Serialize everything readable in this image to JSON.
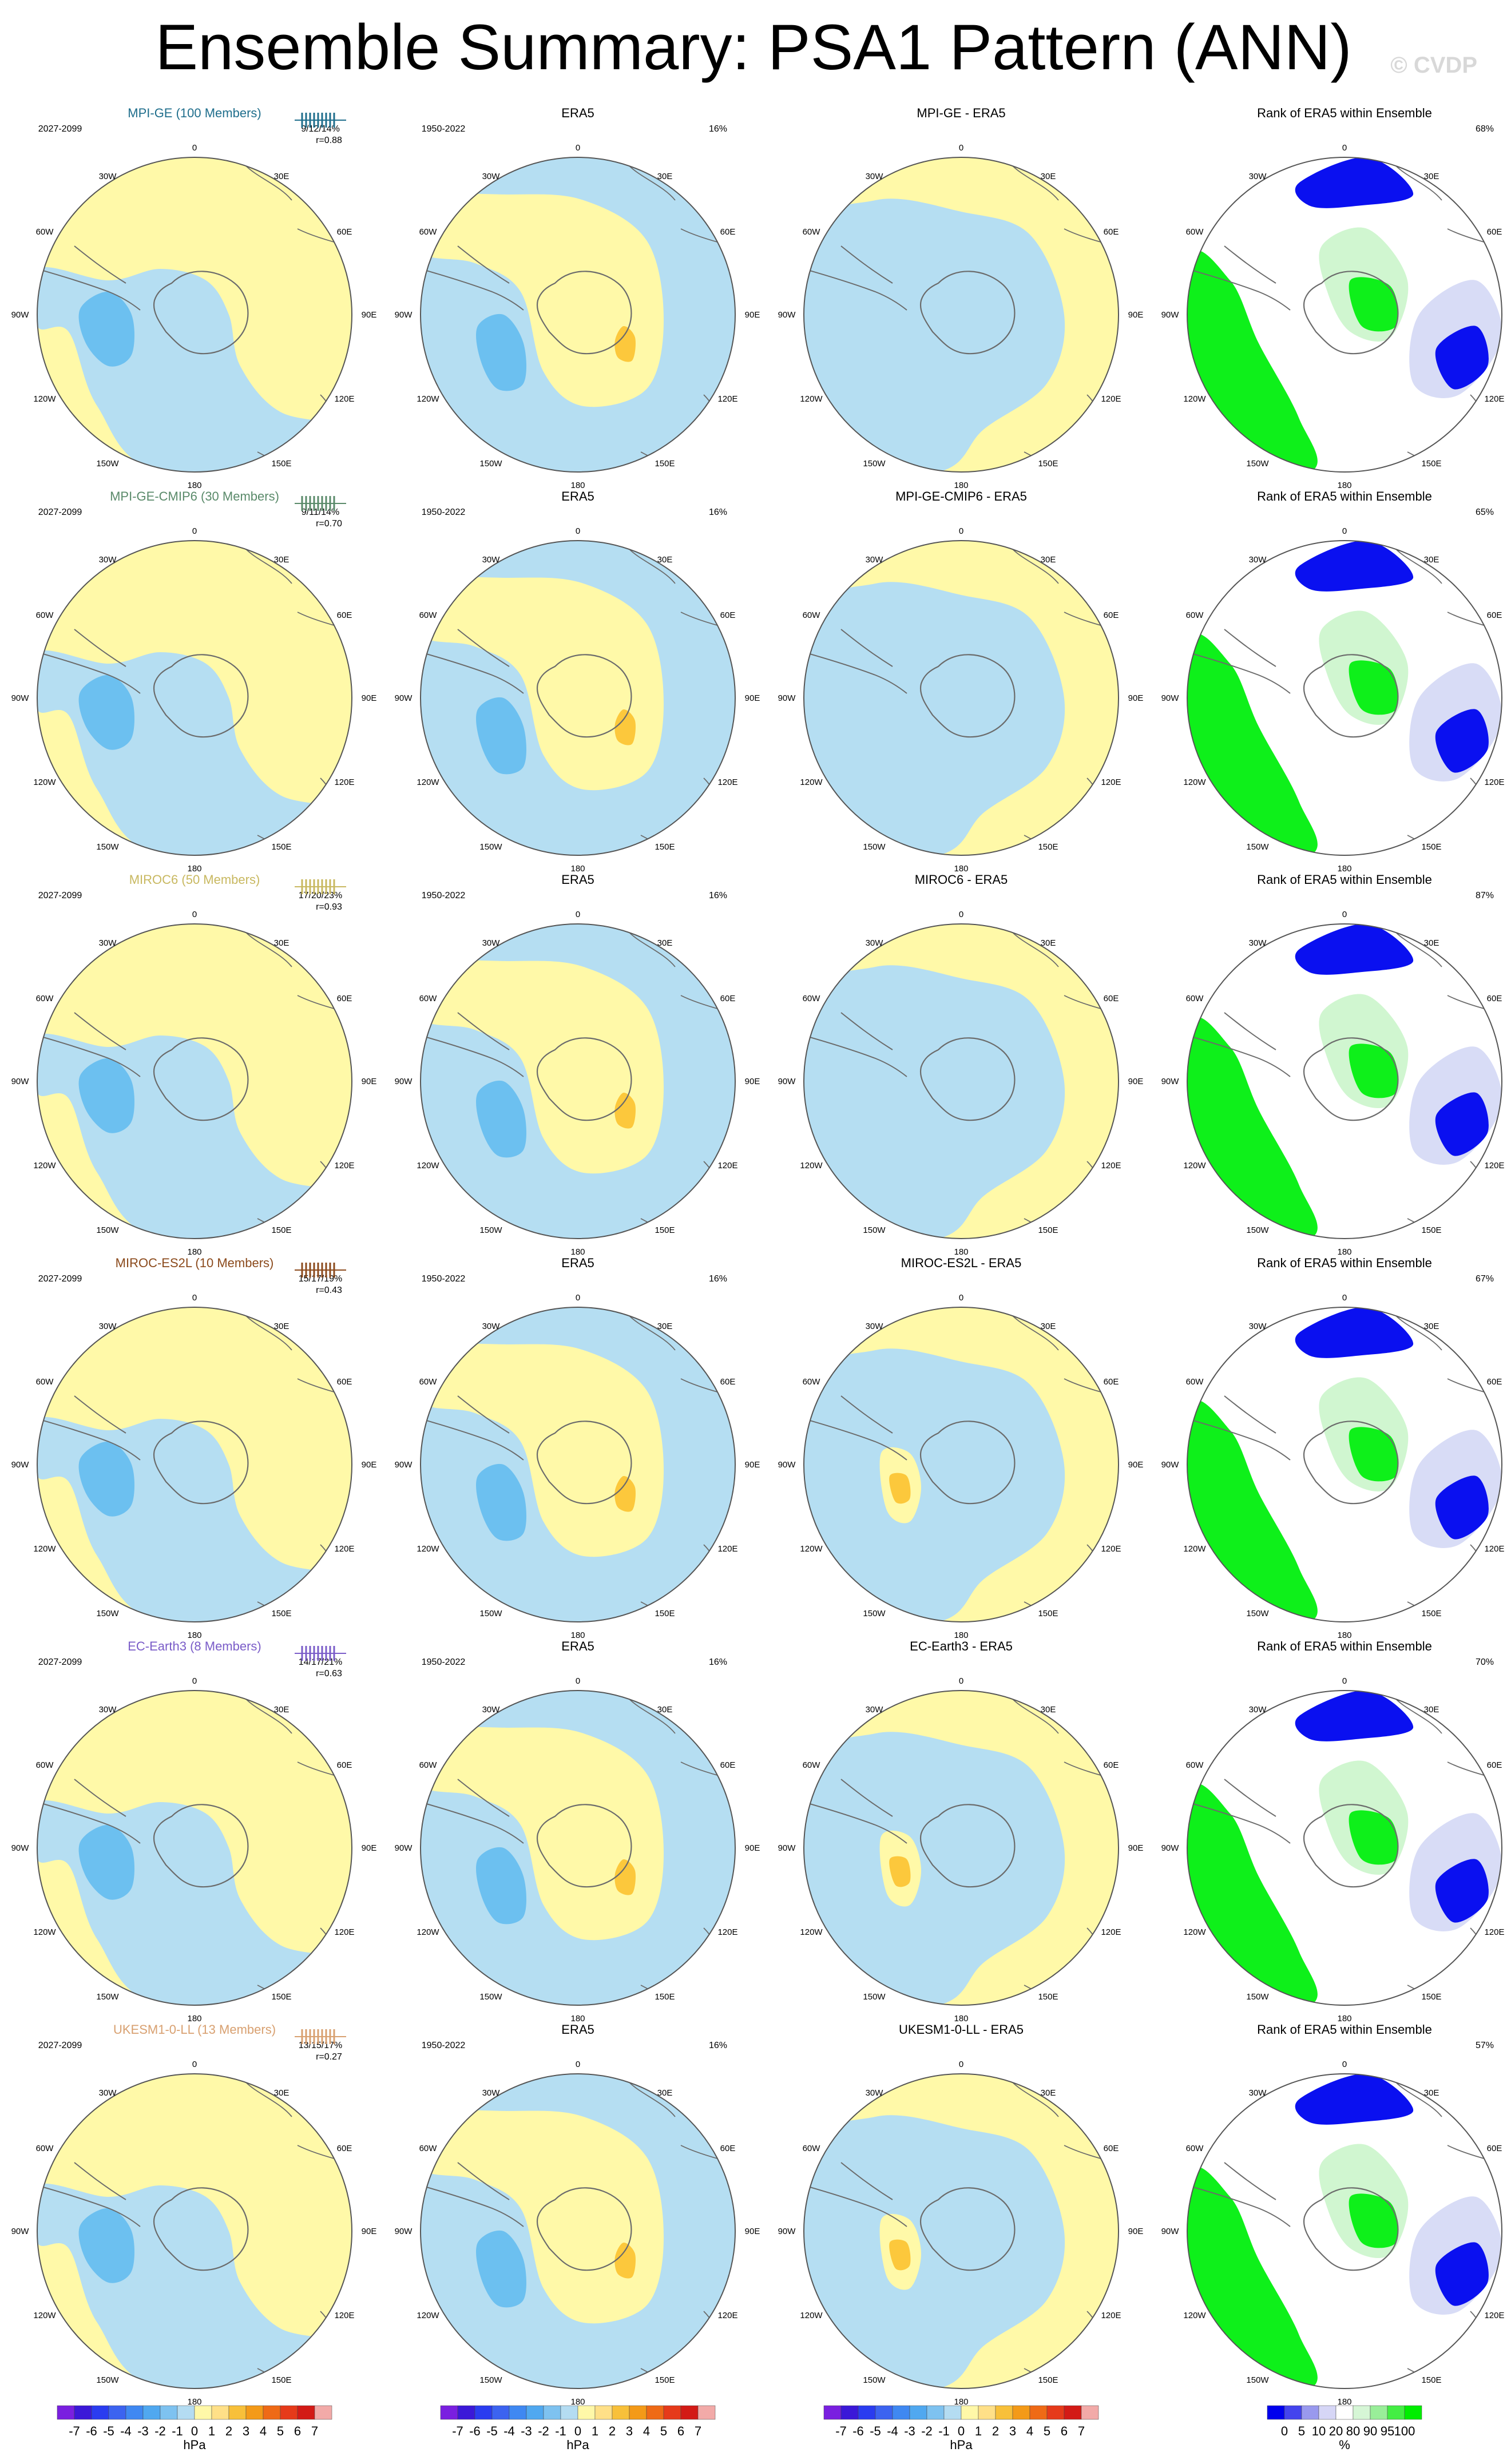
{
  "title": "Ensemble Summary: PSA1 Pattern (ANN)",
  "copyright": "© CVDP",
  "lon_labels": {
    "top": "0",
    "tr": "30E",
    "tl": "30W",
    "r1": "60E",
    "l1": "60W",
    "r2": "90E",
    "l2": "90W",
    "r3": "120E",
    "l3": "120W",
    "br": "150E",
    "bl": "150W",
    "bottom": "180"
  },
  "era5_years": "1950-2022",
  "era5_pct": "16%",
  "rank_title": "Rank of ERA5 within Ensemble",
  "rows": [
    {
      "model": "MPI-GE (100 Members)",
      "color": "#1f6e8c",
      "years": "2027-2099",
      "stats": "9/12/14%",
      "corr": "r=0.88",
      "diff_title": "MPI-GE - ERA5",
      "rank_pct": "68%"
    },
    {
      "model": "MPI-GE-CMIP6 (30 Members)",
      "color": "#5a8a6a",
      "years": "2027-2099",
      "stats": "9/11/14%",
      "corr": "r=0.70",
      "diff_title": "MPI-GE-CMIP6 - ERA5",
      "rank_pct": "65%"
    },
    {
      "model": "MIROC6 (50 Members)",
      "color": "#c8b860",
      "years": "2027-2099",
      "stats": "17/20/23%",
      "corr": "r=0.93",
      "diff_title": "MIROC6 - ERA5",
      "rank_pct": "87%"
    },
    {
      "model": "MIROC-ES2L (10 Members)",
      "color": "#8b4a1c",
      "years": "2027-2099",
      "stats": "15/17/19%",
      "corr": "r=0.43",
      "diff_title": "MIROC-ES2L - ERA5",
      "rank_pct": "67%"
    },
    {
      "model": "EC-Earth3 (8 Members)",
      "color": "#7a5cc8",
      "years": "2027-2099",
      "stats": "14/17/21%",
      "corr": "r=0.63",
      "diff_title": "EC-Earth3 - ERA5",
      "rank_pct": "70%"
    },
    {
      "model": "UKESM1-0-LL (13 Members)",
      "color": "#d8a070",
      "years": "2027-2099",
      "stats": "13/15/17%",
      "corr": "r=0.27",
      "diff_title": "UKESM1-0-LL - ERA5",
      "rank_pct": "57%"
    }
  ],
  "colorbar_hpa": {
    "labels": [
      "-7",
      "-6",
      "-5",
      "-4",
      "-3",
      "-2",
      "-1",
      "0",
      "1",
      "2",
      "3",
      "4",
      "5",
      "6",
      "7"
    ],
    "unit": "hPa",
    "colors": [
      "#7a1fe0",
      "#3b18d8",
      "#2a3cf0",
      "#3c63f0",
      "#3f88f2",
      "#50a8f0",
      "#7ec2f0",
      "#b4dcf2",
      "#fff8a8",
      "#ffe088",
      "#f8c03a",
      "#f49a18",
      "#ef6a16",
      "#e63a1a",
      "#d31a16",
      "#f2aaa8"
    ]
  },
  "colorbar_rank": {
    "labels": [
      "0",
      "5",
      "10",
      "20",
      "80",
      "90",
      "95",
      "100"
    ],
    "unit": "%",
    "colors": [
      "#0000ee",
      "#4444ee",
      "#9999ee",
      "#d6d6f6",
      "#ffffff",
      "#d6f6d6",
      "#99ee99",
      "#44ee44",
      "#00ee00"
    ]
  },
  "palette": {
    "blue": "#b5def2",
    "yellow": "#fff9a8",
    "mid_blue": "#6cc0f0",
    "orange": "#fcc83c",
    "rank_blue": "#0a10f0",
    "rank_lblue": "#d8dcf6",
    "rank_green": "#0ef01a",
    "rank_lgreen": "#d0f6d0",
    "coast": "#6b6b6b"
  }
}
